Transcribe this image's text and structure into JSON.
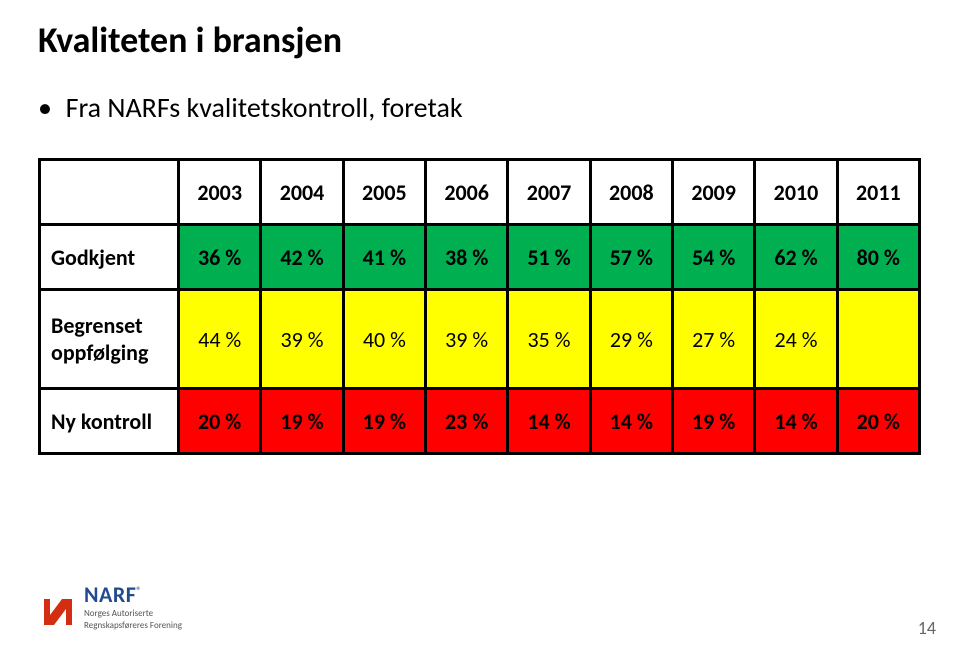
{
  "title": "Kvaliteten i bransjen",
  "bullet": "Fra NARFs kvalitetskontroll, foretak",
  "table": {
    "years": [
      "2003",
      "2004",
      "2005",
      "2006",
      "2007",
      "2008",
      "2009",
      "2010",
      "2011"
    ],
    "rows": [
      {
        "label": "Godkjent",
        "values": [
          "36 %",
          "42 %",
          "41 %",
          "38 %",
          "51 %",
          "57 %",
          "54 %",
          "62 %",
          "80 %"
        ],
        "bg": "#00b050",
        "bold": true,
        "heightClass": "row1",
        "labelMultiline": false
      },
      {
        "label": "Begrenset oppfølging",
        "values": [
          "44 %",
          "39 %",
          "40 %",
          "39 %",
          "35 %",
          "29 %",
          "27 %",
          "24 %",
          ""
        ],
        "bg": "#ffff00",
        "bold": false,
        "heightClass": "row2",
        "labelMultiline": true,
        "labelLines": [
          "Begrenset",
          "oppfølging"
        ]
      },
      {
        "label": "Ny kontroll",
        "values": [
          "20 %",
          "19 %",
          "19 %",
          "23 %",
          "14 %",
          "14 %",
          "19 %",
          "14 %",
          "20 %"
        ],
        "bg": "#ff0000",
        "bold": true,
        "heightClass": "row3",
        "labelMultiline": false
      }
    ],
    "colors": {
      "green": "#00b050",
      "yellow": "#ffff00",
      "red": "#ff0000",
      "border": "#000000",
      "header_bg": "#ffffff"
    }
  },
  "logo": {
    "name": "NARF",
    "sub1": "Norges Autoriserte",
    "sub2": "Regnskapsføreres Forening",
    "mark_color": "#d42e12",
    "reg_mark": "®"
  },
  "page_number": "14"
}
